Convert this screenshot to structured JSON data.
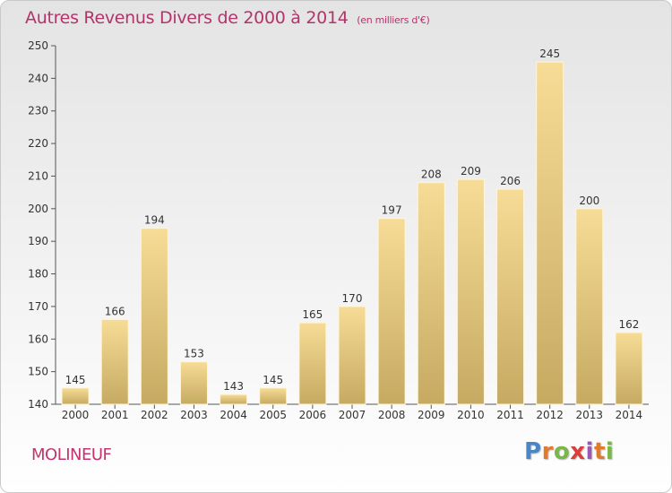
{
  "header": {
    "title": "Autres Revenus Divers de 2000 à 2014",
    "unit": "(en milliers d'€)"
  },
  "footer": {
    "commune": "MOLINEUF",
    "logo_text": "Proxiti",
    "logo_letters": [
      "P",
      "r",
      "o",
      "x",
      "i",
      "t",
      "i"
    ]
  },
  "colors": {
    "bar_top": "#f6dc96",
    "bar_bottom": "#c6aa62",
    "bar_edge": "#fff6d8",
    "title": "#b3346b",
    "axis": "#555555"
  },
  "chart_data": {
    "type": "bar",
    "categories": [
      "2000",
      "2001",
      "2002",
      "2003",
      "2004",
      "2005",
      "2006",
      "2007",
      "2008",
      "2009",
      "2010",
      "2011",
      "2012",
      "2013",
      "2014"
    ],
    "values": [
      145,
      166,
      194,
      153,
      143,
      145,
      165,
      170,
      197,
      208,
      209,
      206,
      245,
      200,
      162
    ],
    "ylim": [
      140,
      250
    ],
    "yticks": [
      140,
      150,
      160,
      170,
      180,
      190,
      200,
      210,
      220,
      230,
      240,
      250
    ],
    "grid": false,
    "data_labels": true
  }
}
